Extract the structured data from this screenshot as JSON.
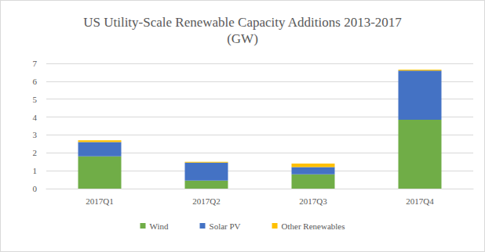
{
  "chart_data": {
    "type": "bar",
    "title": "US Utility-Scale Renewable Capacity Additions 2013-2017",
    "subtitle": "(GW)",
    "categories": [
      "2017Q1",
      "2017Q2",
      "2017Q3",
      "2017Q4"
    ],
    "series": [
      {
        "name": "Wind",
        "color": "#70ad47",
        "values": [
          1.8,
          0.45,
          0.8,
          3.85
        ]
      },
      {
        "name": "Solar PV",
        "color": "#4472c4",
        "values": [
          0.8,
          1.0,
          0.4,
          2.75
        ]
      },
      {
        "name": "Other Renewables",
        "color": "#ffc000",
        "values": [
          0.1,
          0.05,
          0.2,
          0.05
        ]
      }
    ],
    "stacked": true,
    "ylim": [
      0,
      7
    ],
    "yticks": [
      0,
      1,
      2,
      3,
      4,
      5,
      6,
      7
    ],
    "grid": true,
    "legend": "bottom"
  }
}
